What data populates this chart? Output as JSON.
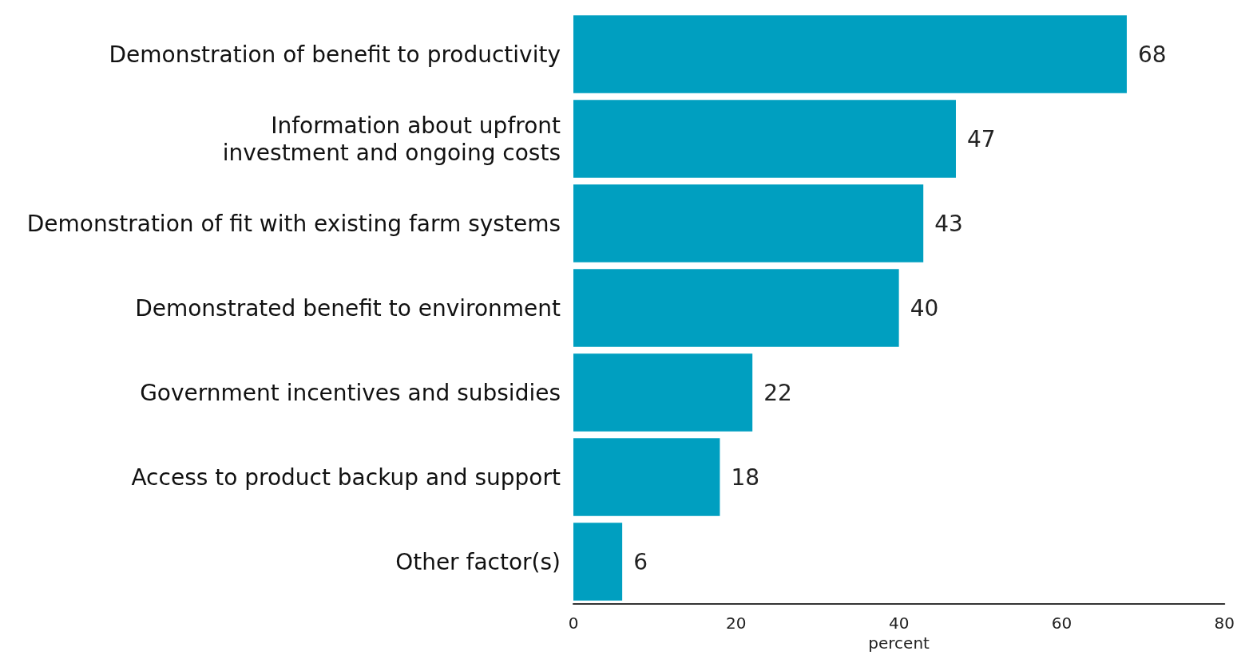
{
  "chart_data": {
    "type": "bar",
    "orientation": "horizontal",
    "xlabel": "percent",
    "categories": [
      "Demonstration of benefit to productivity",
      "Information about upfront\ninvestment and ongoing costs",
      "Demonstration of fit with existing farm systems",
      "Demonstrated benefit to environment",
      "Government incentives and subsidies",
      "Access to product backup and support",
      "Other factor(s)"
    ],
    "values": [
      68,
      47,
      43,
      40,
      22,
      18,
      6
    ],
    "color": "#009fc0",
    "xlim": [
      0,
      80
    ],
    "xticks": [
      0,
      20,
      40,
      60,
      80
    ],
    "data_labels": true
  }
}
